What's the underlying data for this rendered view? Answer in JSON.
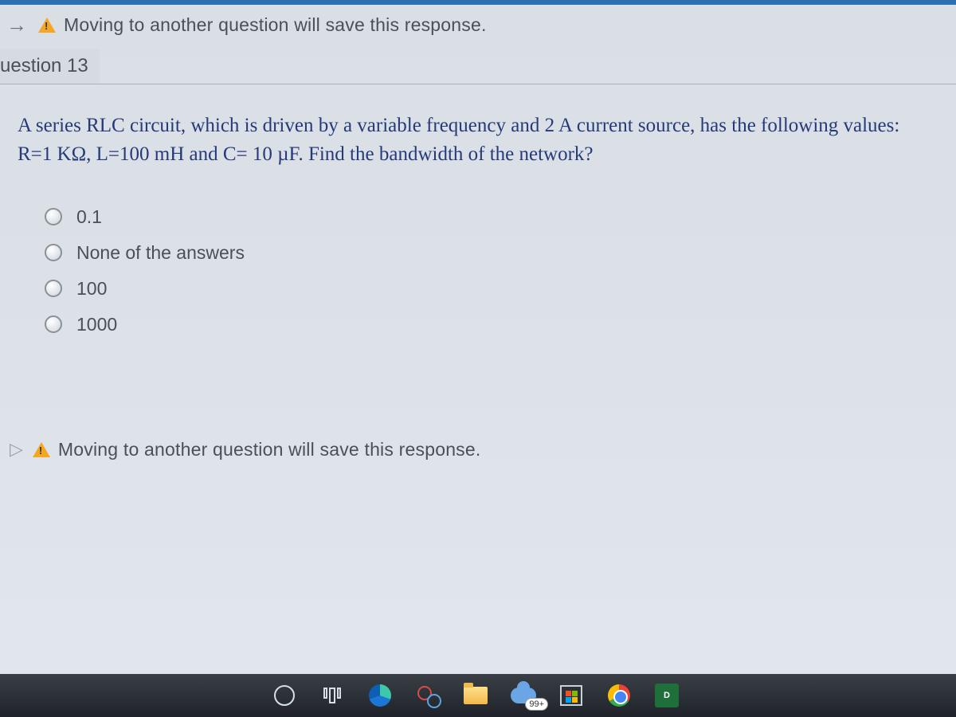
{
  "colors": {
    "page_bg_top": "#d9dfe5",
    "page_bg_bottom": "#e2e7ed",
    "border_top": "#2d6fb3",
    "text_gray": "#4a5056",
    "question_blue": "#263a7a",
    "hr": "#a9b1b9",
    "taskbar_top": "#3a3f46",
    "taskbar_bottom": "#1f2329"
  },
  "top_warning": {
    "arrow": "→",
    "text": "Moving to another question will save this response."
  },
  "question_label": "uestion 13",
  "question_text": "A series RLC circuit, which is driven by a variable frequency and 2 A current source, has the following values: R=1 KΩ, L=100 mH and C= 10 µF. Find the bandwidth of the network?",
  "options": [
    {
      "label": "0.1"
    },
    {
      "label": "None of the answers"
    },
    {
      "label": "100"
    },
    {
      "label": "1000"
    }
  ],
  "bottom_warning": {
    "text": "Moving to another question will save this response."
  },
  "taskbar": {
    "badge": "99+",
    "greenbox_label": "D"
  }
}
